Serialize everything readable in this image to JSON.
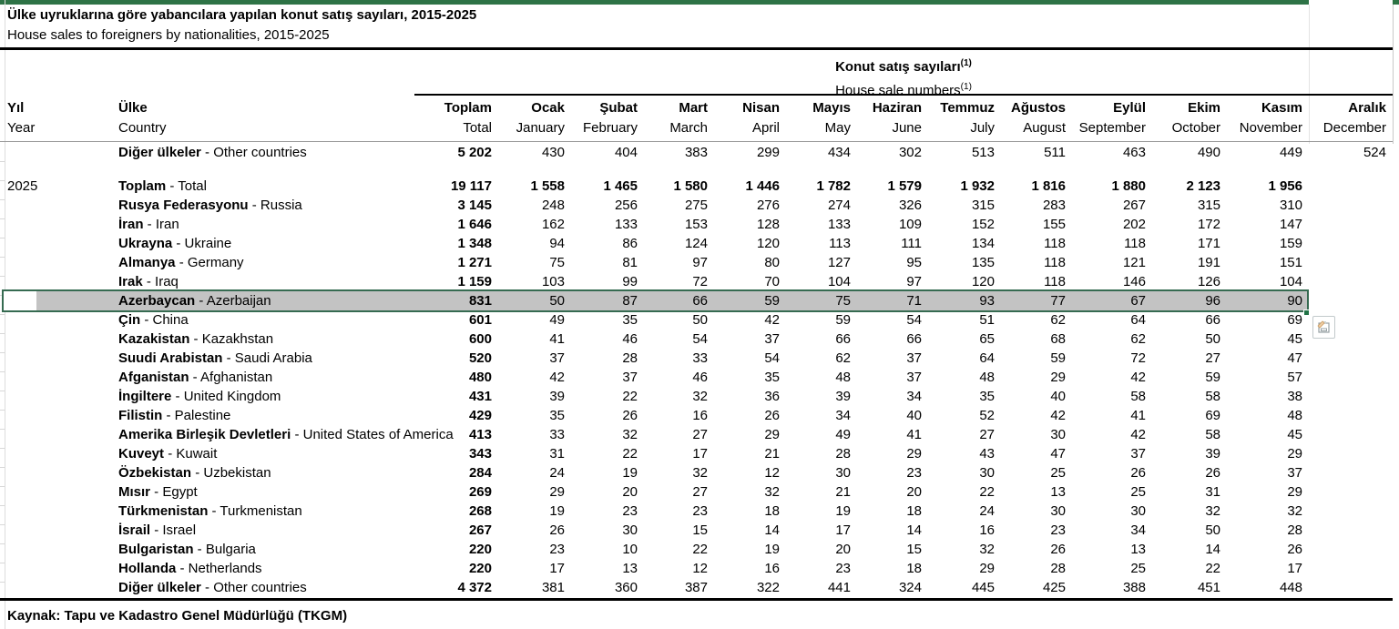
{
  "title": {
    "tr": "Ülke uyruklarına göre yabancılara yapılan konut satış sayıları, 2015-2025",
    "en": "House sales to foreigners by nationalities, 2015-2025"
  },
  "table": {
    "group_header": {
      "tr": "Konut satış sayıları",
      "en": "House sale numbers",
      "footnote": "(1)"
    },
    "columns": {
      "year": {
        "tr": "Yıl",
        "en": "Year"
      },
      "country": {
        "tr": "Ülke",
        "en": "Country"
      },
      "months": [
        {
          "tr": "Toplam",
          "en": "Total"
        },
        {
          "tr": "Ocak",
          "en": "January"
        },
        {
          "tr": "Şubat",
          "en": "February"
        },
        {
          "tr": "Mart",
          "en": "March"
        },
        {
          "tr": "Nisan",
          "en": "April"
        },
        {
          "tr": "Mayıs",
          "en": "May"
        },
        {
          "tr": "Haziran",
          "en": "June"
        },
        {
          "tr": "Temmuz",
          "en": "July"
        },
        {
          "tr": "Ağustos",
          "en": "August"
        },
        {
          "tr": "Eylül",
          "en": "September"
        },
        {
          "tr": "Ekim",
          "en": "October"
        },
        {
          "tr": "Kasım",
          "en": "November"
        },
        {
          "tr": "Aralık",
          "en": "December"
        }
      ]
    },
    "rows": [
      {
        "year": "",
        "tr": "Diğer ülkeler",
        "en": "Other countries",
        "total": "5 202",
        "months": [
          "430",
          "404",
          "383",
          "299",
          "434",
          "302",
          "513",
          "511",
          "463",
          "490",
          "449",
          "524"
        ]
      },
      {
        "blank": true
      },
      {
        "year": "2025",
        "tr": "Toplam",
        "en": "Total",
        "total": "19 117",
        "bold_months": true,
        "months": [
          "1 558",
          "1 465",
          "1 580",
          "1 446",
          "1 782",
          "1 579",
          "1 932",
          "1 816",
          "1 880",
          "2 123",
          "1 956",
          ""
        ]
      },
      {
        "year": "",
        "tr": "Rusya Federasyonu",
        "en": "Russia",
        "total": "3 145",
        "months": [
          "248",
          "256",
          "275",
          "276",
          "274",
          "326",
          "315",
          "283",
          "267",
          "315",
          "310",
          ""
        ]
      },
      {
        "year": "",
        "tr": "İran",
        "en": "Iran",
        "total": "1 646",
        "months": [
          "162",
          "133",
          "153",
          "128",
          "133",
          "109",
          "152",
          "155",
          "202",
          "172",
          "147",
          ""
        ]
      },
      {
        "year": "",
        "tr": "Ukrayna",
        "en": "Ukraine",
        "total": "1 348",
        "months": [
          "94",
          "86",
          "124",
          "120",
          "113",
          "111",
          "134",
          "118",
          "118",
          "171",
          "159",
          ""
        ]
      },
      {
        "year": "",
        "tr": "Almanya",
        "en": "Germany",
        "total": "1 271",
        "months": [
          "75",
          "81",
          "97",
          "80",
          "127",
          "95",
          "135",
          "118",
          "121",
          "191",
          "151",
          ""
        ]
      },
      {
        "year": "",
        "tr": "Irak",
        "en": "Iraq",
        "total": "1 159",
        "months": [
          "103",
          "99",
          "72",
          "70",
          "104",
          "97",
          "120",
          "118",
          "146",
          "126",
          "104",
          ""
        ]
      },
      {
        "year": "",
        "tr": "Azerbaycan",
        "en": "Azerbaijan",
        "total": "831",
        "highlighted": true,
        "months": [
          "50",
          "87",
          "66",
          "59",
          "75",
          "71",
          "93",
          "77",
          "67",
          "96",
          "90",
          ""
        ]
      },
      {
        "year": "",
        "tr": "Çin",
        "en": "China",
        "total": "601",
        "months": [
          "49",
          "35",
          "50",
          "42",
          "59",
          "54",
          "51",
          "62",
          "64",
          "66",
          "69",
          ""
        ]
      },
      {
        "year": "",
        "tr": "Kazakistan",
        "en": "Kazakhstan",
        "total": "600",
        "months": [
          "41",
          "46",
          "54",
          "37",
          "66",
          "66",
          "65",
          "68",
          "62",
          "50",
          "45",
          ""
        ]
      },
      {
        "year": "",
        "tr": "Suudi Arabistan",
        "en": "Saudi Arabia",
        "total": "520",
        "months": [
          "37",
          "28",
          "33",
          "54",
          "62",
          "37",
          "64",
          "59",
          "72",
          "27",
          "47",
          ""
        ]
      },
      {
        "year": "",
        "tr": "Afganistan",
        "en": "Afghanistan",
        "total": "480",
        "months": [
          "42",
          "37",
          "46",
          "35",
          "48",
          "37",
          "48",
          "29",
          "42",
          "59",
          "57",
          ""
        ]
      },
      {
        "year": "",
        "tr": "İngiltere",
        "en": "United Kingdom",
        "total": "431",
        "months": [
          "39",
          "22",
          "32",
          "36",
          "39",
          "34",
          "35",
          "40",
          "58",
          "58",
          "38",
          ""
        ]
      },
      {
        "year": "",
        "tr": "Filistin",
        "en": "Palestine",
        "total": "429",
        "months": [
          "35",
          "26",
          "16",
          "26",
          "34",
          "40",
          "52",
          "42",
          "41",
          "69",
          "48",
          ""
        ]
      },
      {
        "year": "",
        "tr": "Amerika Birleşik Devletleri",
        "en": "United States of America",
        "total": "413",
        "months": [
          "33",
          "32",
          "27",
          "29",
          "49",
          "41",
          "27",
          "30",
          "42",
          "58",
          "45",
          ""
        ]
      },
      {
        "year": "",
        "tr": "Kuveyt",
        "en": "Kuwait",
        "total": "343",
        "months": [
          "31",
          "22",
          "17",
          "21",
          "28",
          "29",
          "43",
          "47",
          "37",
          "39",
          "29",
          ""
        ]
      },
      {
        "year": "",
        "tr": "Özbekistan",
        "en": "Uzbekistan",
        "total": "284",
        "months": [
          "24",
          "19",
          "32",
          "12",
          "30",
          "23",
          "30",
          "25",
          "26",
          "26",
          "37",
          ""
        ]
      },
      {
        "year": "",
        "tr": "Mısır",
        "en": "Egypt",
        "total": "269",
        "months": [
          "29",
          "20",
          "27",
          "32",
          "21",
          "20",
          "22",
          "13",
          "25",
          "31",
          "29",
          ""
        ]
      },
      {
        "year": "",
        "tr": "Türkmenistan",
        "en": "Turkmenistan",
        "total": "268",
        "months": [
          "19",
          "23",
          "23",
          "18",
          "19",
          "18",
          "24",
          "30",
          "30",
          "32",
          "32",
          ""
        ]
      },
      {
        "year": "",
        "tr": "İsrail",
        "en": "Israel",
        "total": "267",
        "months": [
          "26",
          "30",
          "15",
          "14",
          "17",
          "14",
          "16",
          "23",
          "34",
          "50",
          "28",
          ""
        ]
      },
      {
        "year": "",
        "tr": "Bulgaristan",
        "en": "Bulgaria",
        "total": "220",
        "months": [
          "23",
          "10",
          "22",
          "19",
          "20",
          "15",
          "32",
          "26",
          "13",
          "14",
          "26",
          ""
        ]
      },
      {
        "year": "",
        "tr": "Hollanda",
        "en": "Netherlands",
        "total": "220",
        "months": [
          "17",
          "13",
          "12",
          "16",
          "23",
          "18",
          "29",
          "28",
          "25",
          "22",
          "17",
          ""
        ]
      },
      {
        "year": "",
        "tr": "Diğer ülkeler",
        "en": "Other countries",
        "total": "4 372",
        "months": [
          "381",
          "360",
          "387",
          "322",
          "441",
          "324",
          "445",
          "425",
          "388",
          "451",
          "448",
          ""
        ]
      }
    ]
  },
  "source": "Kaynak: Tapu ve Kadastro Genel Müdürlüğü (TKGM)",
  "colors": {
    "accent_green": "#2e7346",
    "selection_fill": "#c3c3c3",
    "selection_border": "#366b51",
    "fill_handle": "#217346"
  },
  "icons": {
    "paste_options": "clipboard-paste-options"
  }
}
